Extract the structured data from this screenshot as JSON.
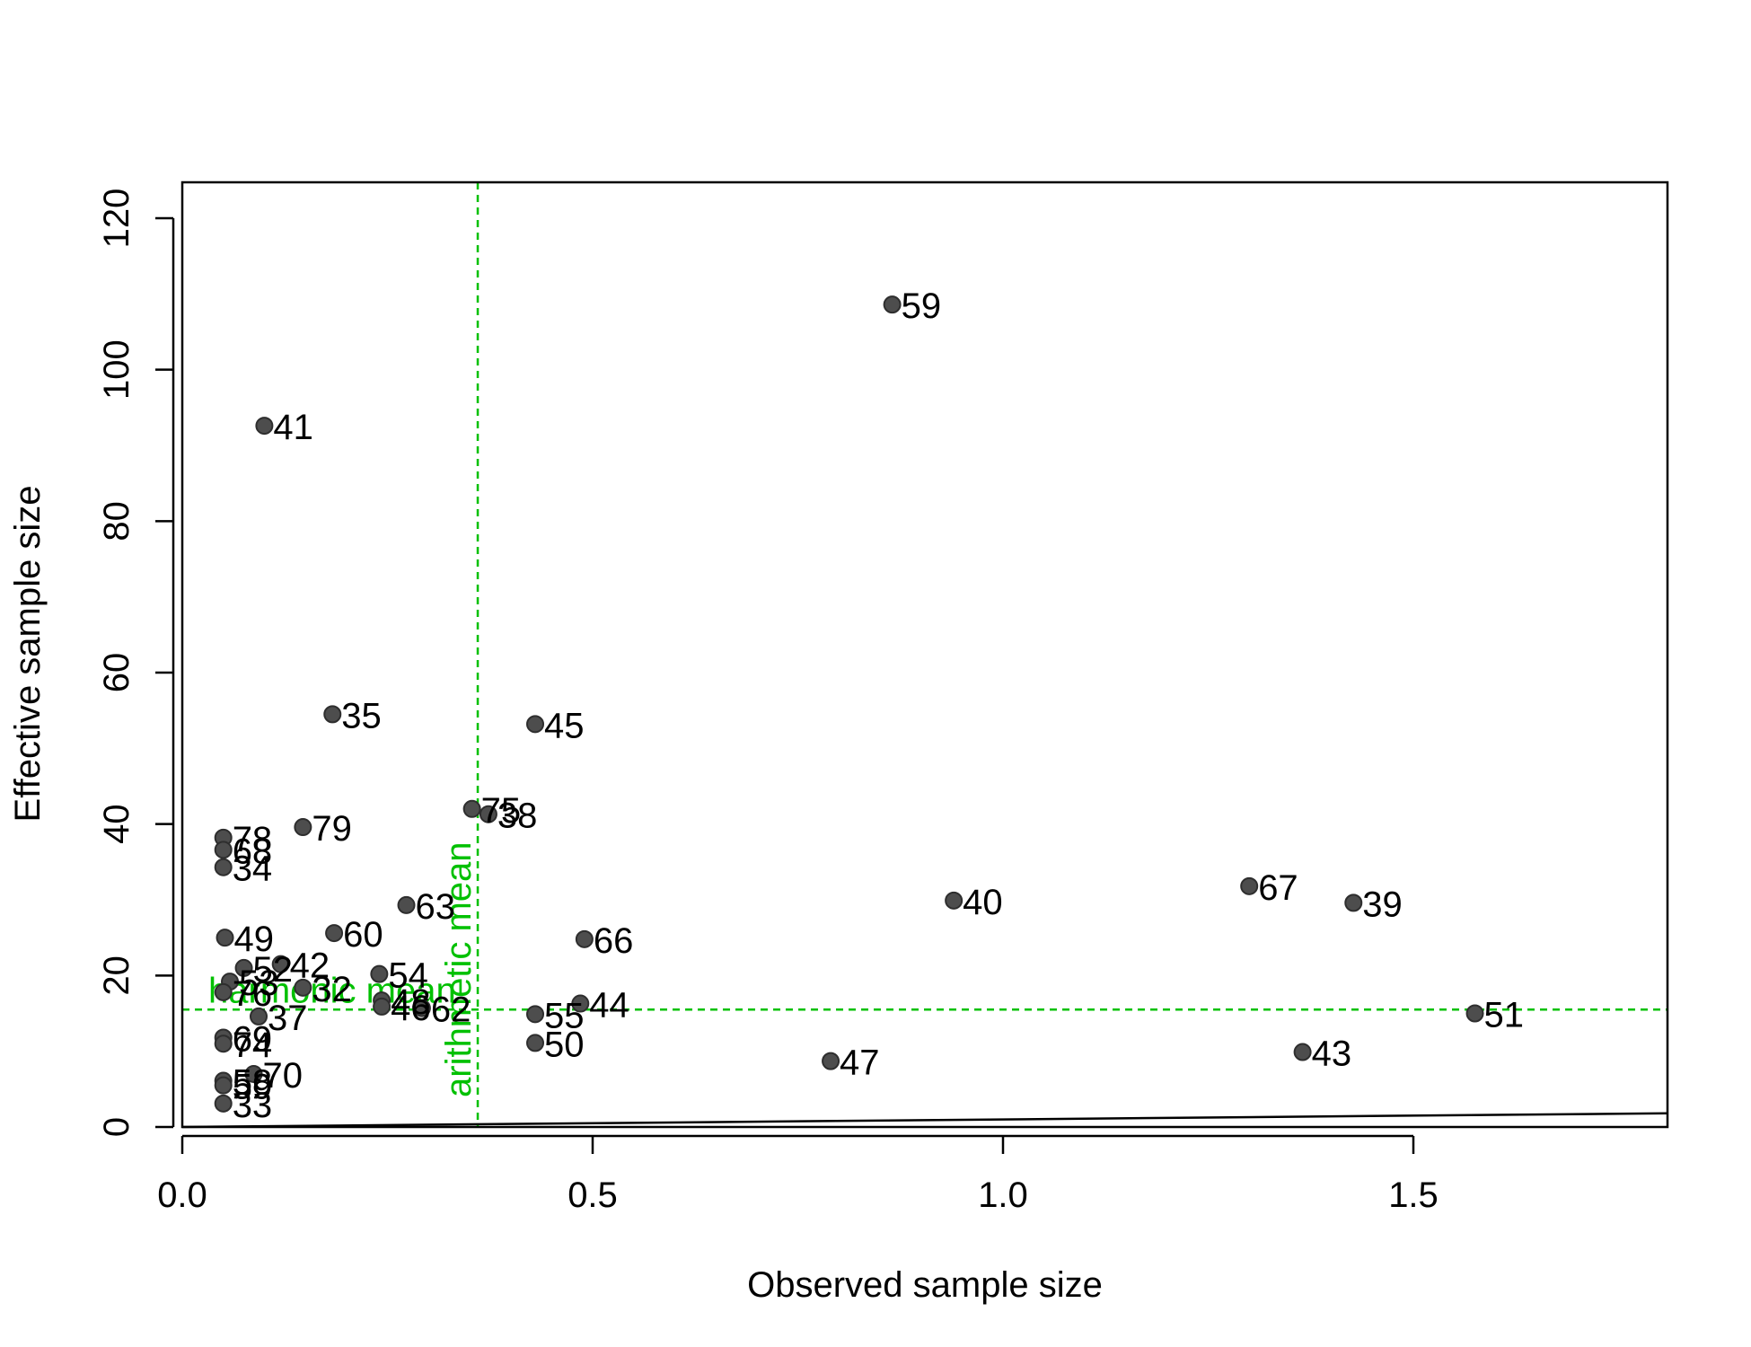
{
  "chart_data": {
    "type": "scatter",
    "xlabel": "Observed sample size",
    "ylabel": "Effective sample size",
    "xlim": [
      0,
      1.81
    ],
    "ylim": [
      0,
      125
    ],
    "x_ticks": [
      0.0,
      0.5,
      1.0,
      1.5
    ],
    "x_tick_labels": [
      "0.0",
      "0.5",
      "1.0",
      "1.5"
    ],
    "y_ticks": [
      0,
      20,
      40,
      60,
      80,
      100,
      120
    ],
    "y_tick_labels": [
      "0",
      "20",
      "40",
      "60",
      "80",
      "100",
      "120"
    ],
    "grid": false,
    "point_color": "#4d4d4d",
    "reference_color": "#00c000",
    "points": [
      {
        "label": "59",
        "x": 0.865,
        "y": 108.6
      },
      {
        "label": "41",
        "x": 0.1,
        "y": 92.6
      },
      {
        "label": "35",
        "x": 0.183,
        "y": 54.5
      },
      {
        "label": "45",
        "x": 0.43,
        "y": 53.2
      },
      {
        "label": "75",
        "x": 0.353,
        "y": 42.0
      },
      {
        "label": "38",
        "x": 0.373,
        "y": 41.3
      },
      {
        "label": "79",
        "x": 0.147,
        "y": 39.6
      },
      {
        "label": "78",
        "x": 0.05,
        "y": 38.2
      },
      {
        "label": "68",
        "x": 0.05,
        "y": 36.6
      },
      {
        "label": "34",
        "x": 0.05,
        "y": 34.3
      },
      {
        "label": "67",
        "x": 1.3,
        "y": 31.8
      },
      {
        "label": "40",
        "x": 0.94,
        "y": 29.9
      },
      {
        "label": "39",
        "x": 1.427,
        "y": 29.6
      },
      {
        "label": "63",
        "x": 0.273,
        "y": 29.3
      },
      {
        "label": "60",
        "x": 0.185,
        "y": 25.6
      },
      {
        "label": "49",
        "x": 0.052,
        "y": 25.0
      },
      {
        "label": "66",
        "x": 0.49,
        "y": 24.8
      },
      {
        "label": "42",
        "x": 0.12,
        "y": 21.5
      },
      {
        "label": "52",
        "x": 0.075,
        "y": 21.0
      },
      {
        "label": "54",
        "x": 0.24,
        "y": 20.2
      },
      {
        "label": "53",
        "x": 0.058,
        "y": 19.2
      },
      {
        "label": "32",
        "x": 0.147,
        "y": 18.4
      },
      {
        "label": "76",
        "x": 0.05,
        "y": 17.8
      },
      {
        "label": "48",
        "x": 0.243,
        "y": 16.7
      },
      {
        "label": "44",
        "x": 0.485,
        "y": 16.3
      },
      {
        "label": "46",
        "x": 0.243,
        "y": 15.9
      },
      {
        "label": "62",
        "x": 0.292,
        "y": 15.7
      },
      {
        "label": "51",
        "x": 1.575,
        "y": 15.0
      },
      {
        "label": "55",
        "x": 0.43,
        "y": 14.9
      },
      {
        "label": "37",
        "x": 0.093,
        "y": 14.6
      },
      {
        "label": "69",
        "x": 0.05,
        "y": 11.8
      },
      {
        "label": "50",
        "x": 0.43,
        "y": 11.1
      },
      {
        "label": "74",
        "x": 0.05,
        "y": 11.0
      },
      {
        "label": "43",
        "x": 1.365,
        "y": 9.9
      },
      {
        "label": "47",
        "x": 0.79,
        "y": 8.7
      },
      {
        "label": "70",
        "x": 0.087,
        "y": 7.0
      },
      {
        "label": "58",
        "x": 0.05,
        "y": 6.1
      },
      {
        "label": "59",
        "x": 0.05,
        "y": 5.5
      },
      {
        "label": "33",
        "x": 0.05,
        "y": 3.1
      }
    ],
    "reference_lines": {
      "arithmetic_mean": {
        "label": "arithmetic mean",
        "x": 0.36
      },
      "harmonic_mean": {
        "label": "harmonic mean",
        "y": 15.5
      },
      "identity": {
        "from": [
          0,
          0
        ],
        "to": [
          1.81,
          1.81
        ]
      }
    }
  }
}
